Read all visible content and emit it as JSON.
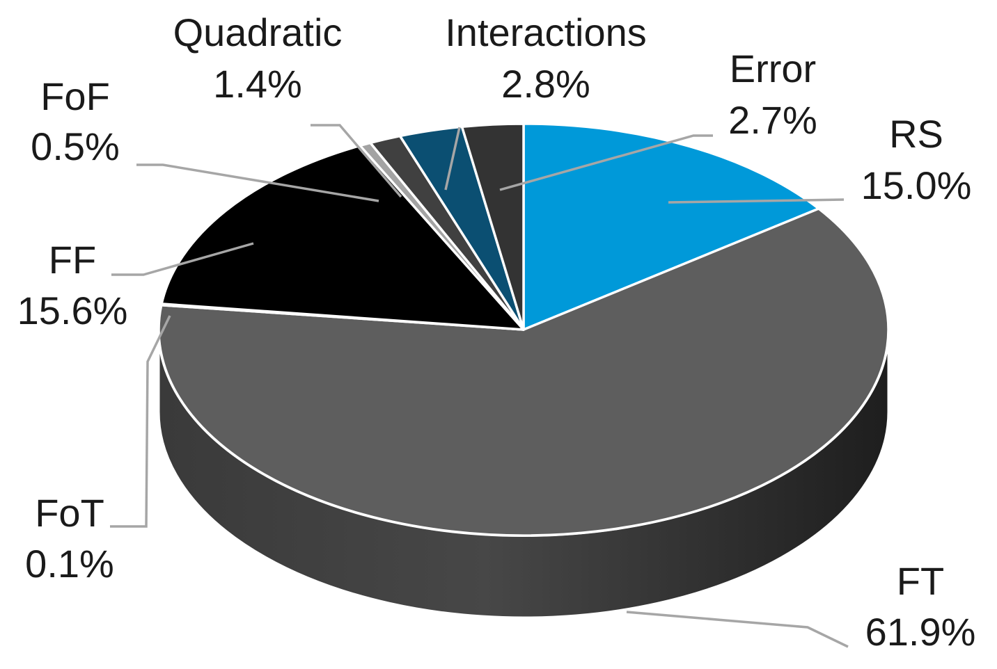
{
  "chart_data": {
    "type": "pie",
    "variant": "3d",
    "title": "",
    "start_angle_deg": 0,
    "direction": "clockwise",
    "slices": [
      {
        "label": "RS",
        "value": 15.0,
        "value_label": "15.0%",
        "color": "#0099d9"
      },
      {
        "label": "FT",
        "value": 61.9,
        "value_label": "61.9%",
        "color": "#5e5e5e"
      },
      {
        "label": "FoT",
        "value": 0.1,
        "value_label": "0.1%",
        "color": "#6e6e6e"
      },
      {
        "label": "FF",
        "value": 15.6,
        "value_label": "15.6%",
        "color": "#000000"
      },
      {
        "label": "FoF",
        "value": 0.5,
        "value_label": "0.5%",
        "color": "#a3a3a3"
      },
      {
        "label": "Quadratic",
        "value": 1.4,
        "value_label": "1.4%",
        "color": "#404040"
      },
      {
        "label": "Interactions",
        "value": 2.8,
        "value_label": "2.8%",
        "color": "#0b4f72"
      },
      {
        "label": "Error",
        "value": 2.7,
        "value_label": "2.7%",
        "color": "#333333"
      }
    ],
    "legend": "none",
    "data_labels": "outside-with-leader-lines"
  },
  "colors": {
    "side_wall": "#2f2f2f",
    "separator": "#ffffff",
    "leader_line": "#a6a6a6",
    "label_text": "#1a1a1a"
  }
}
